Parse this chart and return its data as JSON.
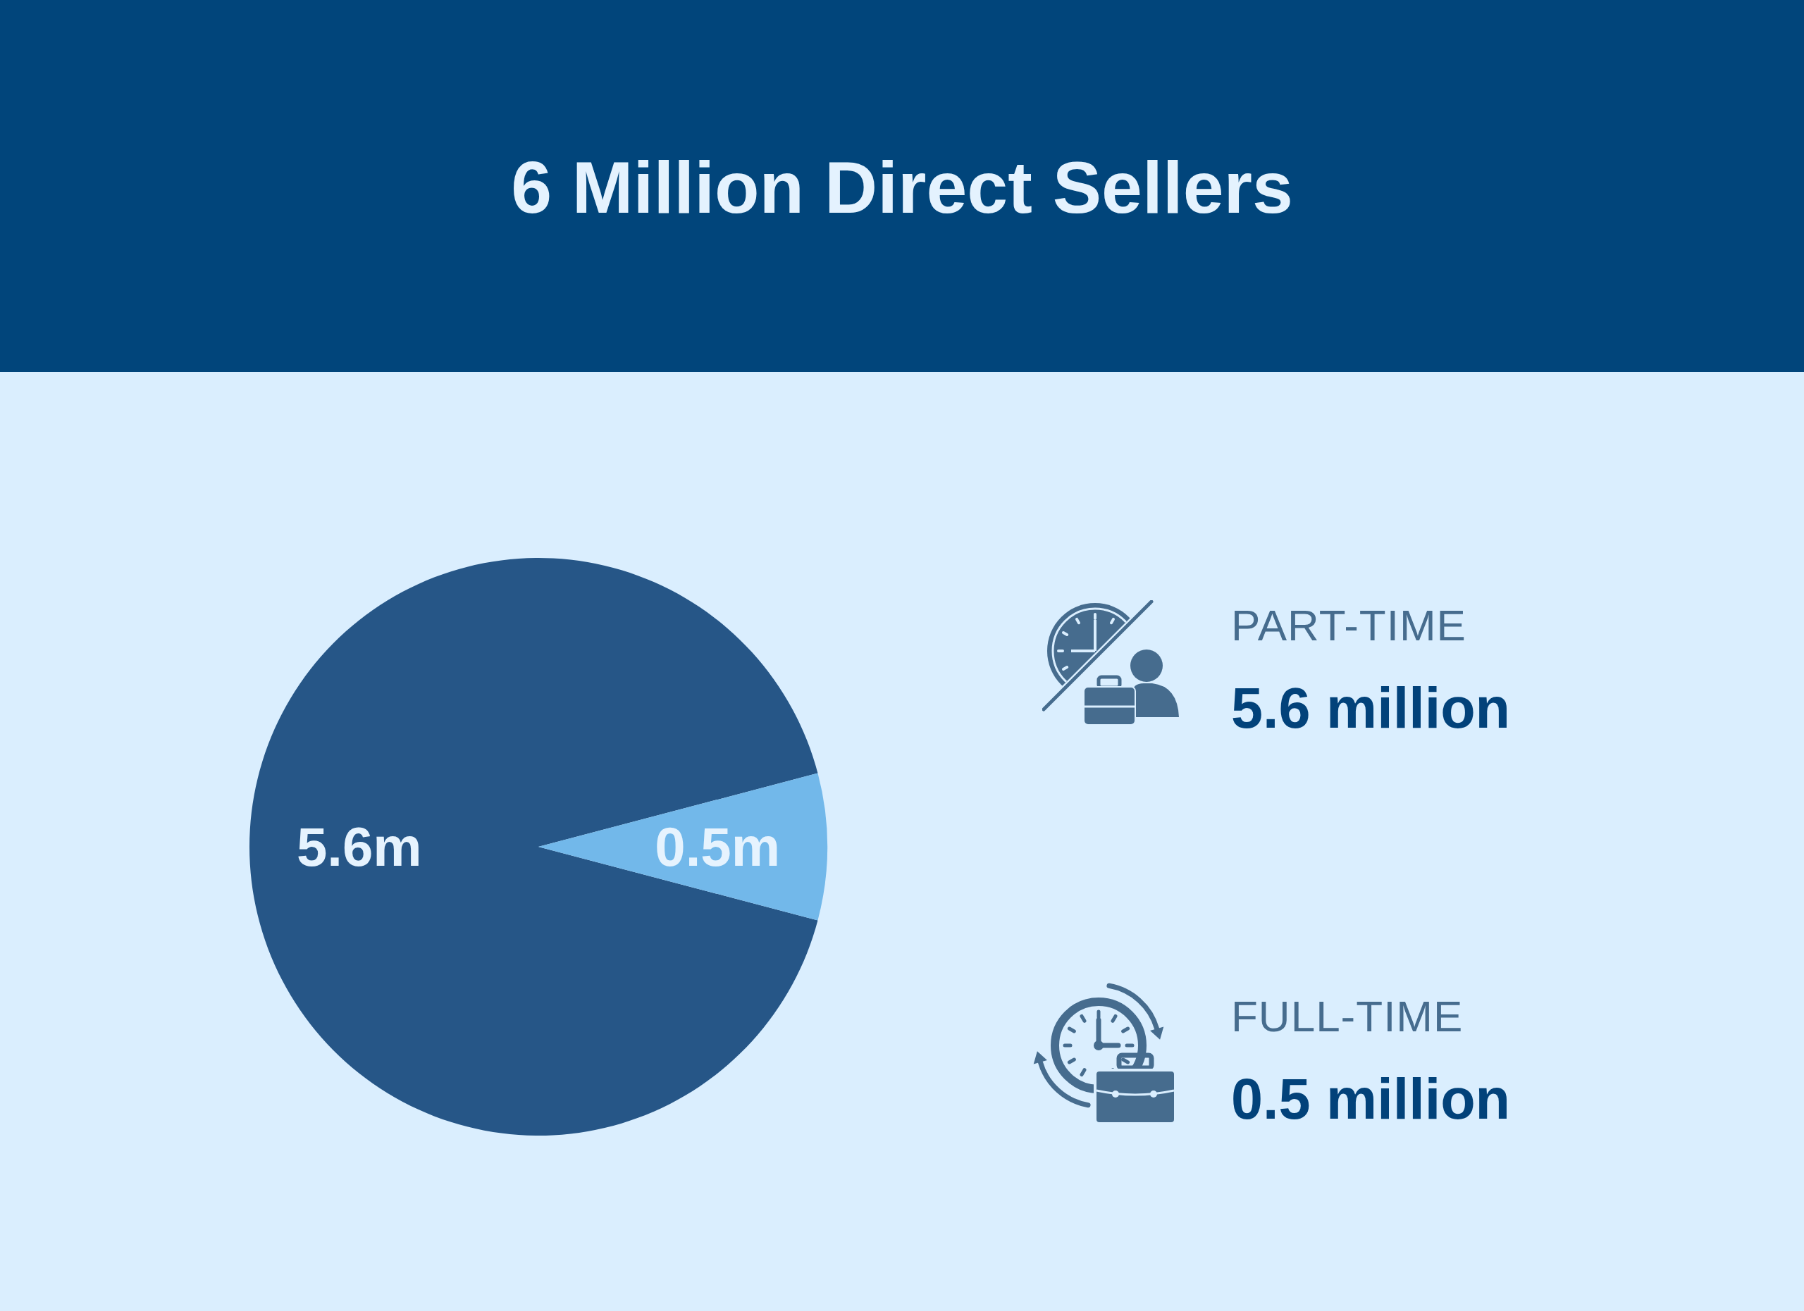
{
  "chart_data": [
    {
      "type": "pie",
      "title": "6 Million Direct Sellers",
      "categories": [
        null,
        null
      ],
      "values": [
        5.6,
        0.5
      ],
      "colors": [
        "#265687",
        "#72b8ea"
      ],
      "value_labels": [
        "5.6m",
        "0.5m"
      ]
    },
    {
      "type": "other",
      "annotations": [
        "PART-TIME",
        "5.6 million",
        "FULL-TIME",
        "0.5 million"
      ]
    }
  ]
}
